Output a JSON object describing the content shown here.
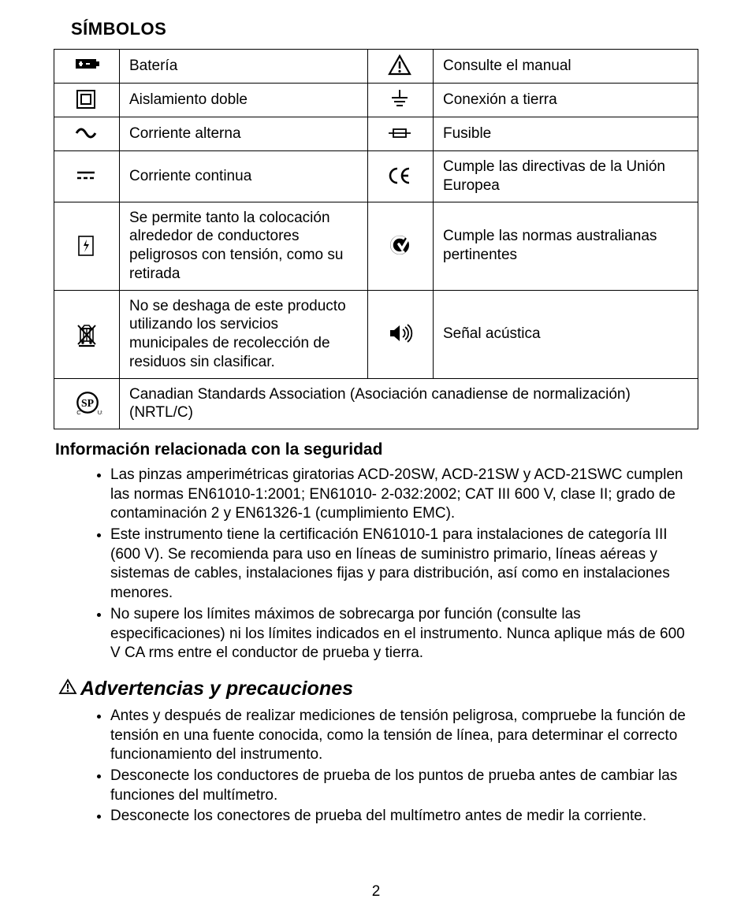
{
  "section_title": "SÍMBOLOS",
  "symbols_table": {
    "rows": [
      {
        "left_icon": "battery",
        "left_desc": "Batería",
        "right_icon": "warning",
        "right_desc": "Consulte el manual"
      },
      {
        "left_icon": "double-insulation",
        "left_desc": "Aislamiento doble",
        "right_icon": "ground",
        "right_desc": "Conexión a tierra"
      },
      {
        "left_icon": "ac",
        "left_desc": "Corriente alterna",
        "right_icon": "fuse",
        "right_desc": "Fusible"
      },
      {
        "left_icon": "dc",
        "left_desc": "Corriente continua",
        "right_icon": "ce",
        "right_desc": "Cumple las directivas de la Unión Europea"
      },
      {
        "left_icon": "clamp-live",
        "left_desc": "Se permite tanto la colocación alrededor de conductores peligrosos con tensión, como su retirada",
        "right_icon": "ctick",
        "right_desc": "Cumple las normas australianas pertinentes"
      },
      {
        "left_icon": "weee",
        "left_desc": "No se deshaga de este producto utilizando los servicios municipales de recolección de residuos sin clasificar.",
        "right_icon": "sound",
        "right_desc": "Señal acústica"
      }
    ],
    "full_row": {
      "icon": "csa",
      "desc": "Canadian Standards Association (Asociación canadiense de normalización) (NRTL/C)"
    }
  },
  "safety": {
    "title": "Información relacionada con la seguridad",
    "items": [
      "Las pinzas amperimétricas giratorias ACD-20SW, ACD-21SW y ACD-21SWC cumplen las normas EN61010-1:2001; EN61010- 2-032:2002; CAT III 600 V, clase II; grado de contaminación 2 y EN61326-1 (cumplimiento EMC).",
      "Este instrumento tiene la certificación EN61010-1 para instalaciones de categoría III (600 V). Se recomienda para uso en líneas de suministro primario, líneas aéreas y sistemas de cables, instalaciones fijas y para distribución, así como en instalaciones menores.",
      "No supere los límites máximos de sobrecarga por función (consulte las especificaciones) ni los límites indicados en el instrumento. Nunca aplique más de 600 V CA rms entre el conductor de prueba y tierra."
    ]
  },
  "warnings": {
    "title": "Advertencias y precauciones",
    "items": [
      "Antes y después de realizar mediciones de tensión peligrosa, compruebe la función de tensión en una fuente conocida, como la tensión de línea, para determinar el correcto funcionamiento del instrumento.",
      "Desconecte los conductores de prueba de los puntos de prueba antes de cambiar las funciones del multímetro.",
      "Desconecte los conectores de prueba del multímetro antes de medir la corriente."
    ]
  },
  "page_number": "2",
  "colors": {
    "text": "#000000",
    "border": "#000000",
    "background": "#ffffff"
  },
  "icon_names": {
    "battery": "battery-icon",
    "double-insulation": "double-insulation-icon",
    "ac": "ac-current-icon",
    "dc": "dc-current-icon",
    "clamp-live": "clamp-live-conductor-icon",
    "weee": "weee-bin-icon",
    "warning": "warning-triangle-icon",
    "ground": "earth-ground-icon",
    "fuse": "fuse-icon",
    "ce": "ce-mark-icon",
    "ctick": "c-tick-icon",
    "sound": "audible-signal-icon",
    "csa": "csa-mark-icon"
  }
}
